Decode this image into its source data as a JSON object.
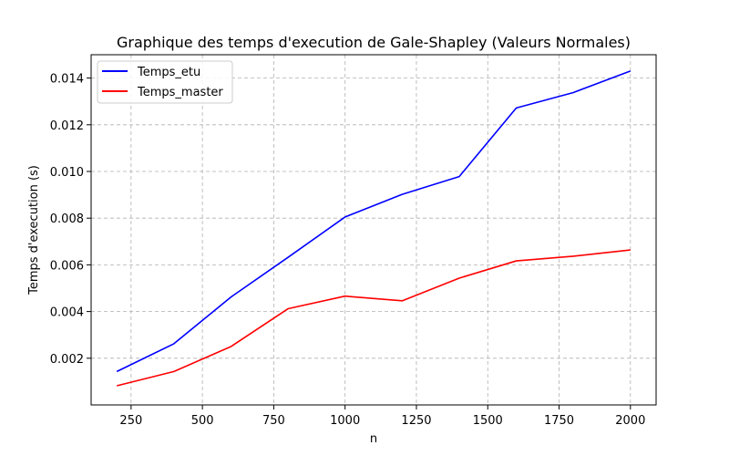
{
  "chart_data": {
    "type": "line",
    "title": "Graphique des temps d'execution de Gale-Shapley (Valeurs Normales)",
    "xlabel": "n",
    "ylabel": "Temps d'execution (s)",
    "x": [
      200,
      400,
      600,
      800,
      1000,
      1200,
      1400,
      1600,
      1800,
      2000
    ],
    "xlim": [
      110,
      2090
    ],
    "ylim": [
      0.0,
      0.015
    ],
    "xticks": [
      250,
      500,
      750,
      1000,
      1250,
      1500,
      1750,
      2000
    ],
    "xtick_labels": [
      "250",
      "500",
      "750",
      "1000",
      "1250",
      "1500",
      "1750",
      "2000"
    ],
    "yticks": [
      0.002,
      0.004,
      0.006,
      0.008,
      0.01,
      0.012,
      0.014
    ],
    "ytick_labels": [
      "0.002",
      "0.004",
      "0.006",
      "0.008",
      "0.010",
      "0.012",
      "0.014"
    ],
    "grid": true,
    "legend_position": "top-left",
    "series": [
      {
        "name": "Temps_etu",
        "color": "#0000ff",
        "values": [
          0.00143,
          0.00262,
          0.00462,
          0.00632,
          0.00805,
          0.00902,
          0.00978,
          0.01272,
          0.01338,
          0.0143
        ]
      },
      {
        "name": "Temps_master",
        "color": "#ff0000",
        "values": [
          0.00082,
          0.00143,
          0.0025,
          0.00412,
          0.00466,
          0.00446,
          0.00543,
          0.00617,
          0.00637,
          0.00664
        ]
      }
    ]
  }
}
